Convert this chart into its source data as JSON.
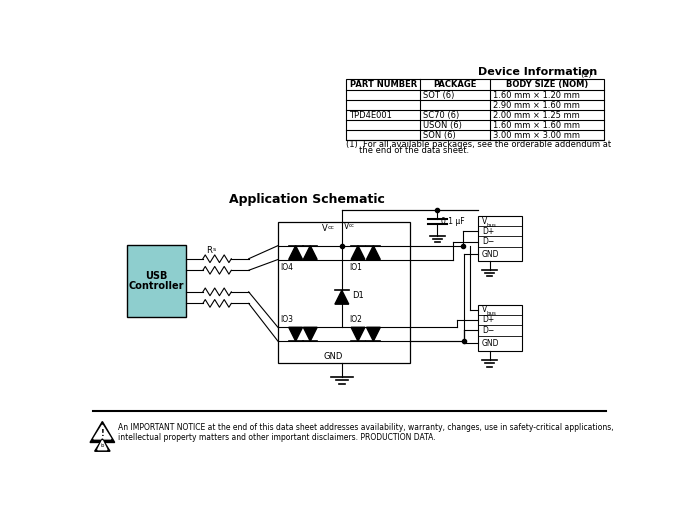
{
  "table_headers": [
    "PART NUMBER",
    "PACKAGE",
    "BODY SIZE (NOM)"
  ],
  "table_rows": [
    [
      "",
      "SOT (6)",
      "1.60 mm × 1.20 mm"
    ],
    [
      "",
      "",
      "2.90 mm × 1.60 mm"
    ],
    [
      "TPD4E001",
      "SC70 (6)",
      "2.00 mm × 1.25 mm"
    ],
    [
      "",
      "USON (6)",
      "1.60 mm × 1.60 mm"
    ],
    [
      "",
      "SON (6)",
      "3.00 mm × 3.00 mm"
    ]
  ],
  "footnote1": "(1)  For all available packages, see the orderable addendum at",
  "footnote2": "     the end of the data sheet.",
  "schematic_title": "Application Schematic",
  "notice_text1": "An IMPORTANT NOTICE at the end of this data sheet addresses availability, warranty, changes, use in safety-critical applications,",
  "notice_text2": "intellectual property matters and other important disclaimers. PRODUCTION DATA.",
  "usb_box_color": "#8ecece",
  "bg_color": "#ffffff"
}
